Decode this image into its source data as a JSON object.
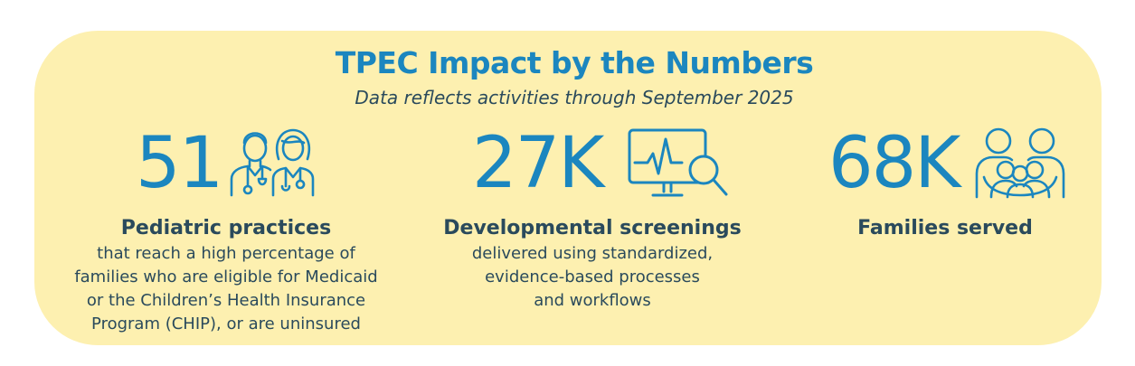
{
  "header": {
    "title": "TPEC Impact by the Numbers",
    "subtitle": "Data reflects activities through September 2025"
  },
  "stats": [
    {
      "value": "51",
      "icon": "doctors-icon",
      "label": "Pediatric practices",
      "description_lines": [
        "that reach a high percentage of",
        "families who are eligible for Medicaid",
        "or the Children’s Health Insurance",
        "Program (CHIP), or are uninsured"
      ]
    },
    {
      "value": "27K",
      "icon": "monitor-search-icon",
      "label": "Developmental screenings",
      "description_lines": [
        "delivered using standardized,",
        "evidence-based processes",
        "and workflows"
      ]
    },
    {
      "value": "68K",
      "icon": "family-icon",
      "label": "Families served",
      "description_lines": []
    }
  ],
  "colors": {
    "panel_background": "#fdf0b0",
    "accent_blue": "#1b86bf",
    "text_dark": "#2a4a5c"
  }
}
